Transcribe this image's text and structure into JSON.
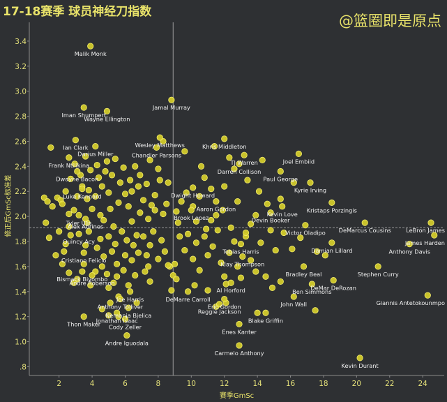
{
  "header": {
    "title": "17-18赛季 球员神经刀指数",
    "watermark": "@篮圈即是原点"
  },
  "colors": {
    "background": "#2e3033",
    "point": "#d7cf2a",
    "point_stroke": "#f2ec6a",
    "text_accent": "#e9e36a",
    "reference_line": "#a9a9a9"
  },
  "chart_data": {
    "type": "scatter",
    "title": "17-18赛季 球员神经刀指数",
    "xlabel": "赛季GmSc",
    "ylabel": "修正后GmSc标准差",
    "xlim": [
      0.2,
      25.3
    ],
    "ylim": [
      0.73,
      3.55
    ],
    "x_ticks": [
      2,
      4,
      6,
      8,
      10,
      12,
      14,
      16,
      18,
      20,
      22,
      24
    ],
    "y_ticks": [
      0.8,
      1.0,
      1.2,
      1.4,
      1.6,
      1.8,
      2.0,
      2.2,
      2.4,
      2.6,
      2.8,
      3.0,
      3.2,
      3.4
    ],
    "y_tick_labels": [
      ".8",
      "1.0",
      "1.2",
      "1.4",
      "1.6",
      "1.8",
      "2.0",
      "2.2",
      "2.4",
      "2.6",
      "2.8",
      "3.0",
      "3.2",
      "3.4"
    ],
    "reference_lines": {
      "x": 8.9,
      "y": 1.91
    },
    "grid": false,
    "labeled_points": [
      {
        "name": "Malik Monk",
        "x": 3.9,
        "y": 3.36
      },
      {
        "name": "Jamal Murray",
        "x": 8.8,
        "y": 2.93
      },
      {
        "name": "Iman Shumpert",
        "x": 3.5,
        "y": 2.87
      },
      {
        "name": "Wayne Ellington",
        "x": 4.9,
        "y": 2.84
      },
      {
        "name": "Wesley Matthews",
        "x": 8.1,
        "y": 2.63
      },
      {
        "name": "Darius Miller",
        "x": 4.2,
        "y": 2.56
      },
      {
        "name": "Ian Clark",
        "x": 3.0,
        "y": 2.61
      },
      {
        "name": "Chandler Parsons",
        "x": 7.9,
        "y": 2.55
      },
      {
        "name": "Khris Middleton",
        "x": 12.0,
        "y": 2.62
      },
      {
        "name": "TJ Warren",
        "x": 13.2,
        "y": 2.49
      },
      {
        "name": "Joel Embiid",
        "x": 16.5,
        "y": 2.5
      },
      {
        "name": "Frank Ntilikina",
        "x": 2.6,
        "y": 2.47
      },
      {
        "name": "Dwayne Bacon",
        "x": 3.1,
        "y": 2.36
      },
      {
        "name": "Darren Collison",
        "x": 12.9,
        "y": 2.42
      },
      {
        "name": "Paul George",
        "x": 15.4,
        "y": 2.36
      },
      {
        "name": "Luke Kennard",
        "x": 3.4,
        "y": 2.22
      },
      {
        "name": "Dwight Howard",
        "x": 10.1,
        "y": 2.23
      },
      {
        "name": "Kyrie Irving",
        "x": 17.2,
        "y": 2.27
      },
      {
        "name": "Aaron Gordon",
        "x": 11.5,
        "y": 2.12
      },
      {
        "name": "Kristaps Porzingis",
        "x": 18.5,
        "y": 2.11
      },
      {
        "name": "Tyler Ulis",
        "x": 3.2,
        "y": 2.01
      },
      {
        "name": "Alex Abrines",
        "x": 3.6,
        "y": 1.98
      },
      {
        "name": "Brook Lopez",
        "x": 10.0,
        "y": 2.05
      },
      {
        "name": "Devin Booker",
        "x": 14.8,
        "y": 2.03
      },
      {
        "name": "Kevin Love",
        "x": 15.5,
        "y": 2.08
      },
      {
        "name": "LeBron James",
        "x": 24.5,
        "y": 1.95
      },
      {
        "name": "DeMarcus Cousins",
        "x": 20.5,
        "y": 1.95
      },
      {
        "name": "Victor Oladipo",
        "x": 16.9,
        "y": 1.93
      },
      {
        "name": "Quincy Acy",
        "x": 3.2,
        "y": 1.86
      },
      {
        "name": "James Harden",
        "x": 24.7,
        "y": 1.85
      },
      {
        "name": "Damian Lillard",
        "x": 18.5,
        "y": 1.79
      },
      {
        "name": "Anthony Davis",
        "x": 23.2,
        "y": 1.78
      },
      {
        "name": "Tobias Harris",
        "x": 13.0,
        "y": 1.78
      },
      {
        "name": "Cristiano Felicio",
        "x": 3.5,
        "y": 1.71
      },
      {
        "name": "Klay Thompson",
        "x": 13.1,
        "y": 1.68
      },
      {
        "name": "Bismack Biyombo",
        "x": 3.4,
        "y": 1.56
      },
      {
        "name": "Stephen Curry",
        "x": 21.3,
        "y": 1.6
      },
      {
        "name": "Bradley Beal",
        "x": 16.8,
        "y": 1.6
      },
      {
        "name": "Andre Roberson",
        "x": 4.0,
        "y": 1.53
      },
      {
        "name": "DeMar DeRozan",
        "x": 18.6,
        "y": 1.49
      },
      {
        "name": "Al Horford",
        "x": 12.4,
        "y": 1.47
      },
      {
        "name": "Ben Simmons",
        "x": 17.3,
        "y": 1.46
      },
      {
        "name": "DeMarre Carroll",
        "x": 9.8,
        "y": 1.4
      },
      {
        "name": "Joe Harris",
        "x": 6.3,
        "y": 1.4
      },
      {
        "name": "Giannis Antetokounmpo",
        "x": 24.3,
        "y": 1.37
      },
      {
        "name": "Anthony Tolliver",
        "x": 5.7,
        "y": 1.34
      },
      {
        "name": "Eric Gordon",
        "x": 12.0,
        "y": 1.34
      },
      {
        "name": "John Wall",
        "x": 16.2,
        "y": 1.36
      },
      {
        "name": "Nemanja Bjelica",
        "x": 6.2,
        "y": 1.27
      },
      {
        "name": "Jonathan Isaac",
        "x": 5.5,
        "y": 1.23
      },
      {
        "name": "Reggie Jackson",
        "x": 11.7,
        "y": 1.3
      },
      {
        "name": "Blake Griffin",
        "x": 14.5,
        "y": 1.23
      },
      {
        "name": "Thon Maker",
        "x": 3.5,
        "y": 1.2
      },
      {
        "name": "Cody Zeller",
        "x": 6.0,
        "y": 1.18
      },
      {
        "name": "Enes Kanter",
        "x": 12.9,
        "y": 1.14
      },
      {
        "name": "Andre Iguodala",
        "x": 6.1,
        "y": 1.05
      },
      {
        "name": "Carmelo Anthony",
        "x": 12.9,
        "y": 0.97
      },
      {
        "name": "Kevin Durant",
        "x": 20.2,
        "y": 0.87
      }
    ],
    "other_points": [
      [
        1.5,
        2.55
      ],
      [
        1.1,
        2.15
      ],
      [
        1.3,
        2.12
      ],
      [
        1.6,
        2.08
      ],
      [
        1.9,
        2.15
      ],
      [
        2.1,
        2.13
      ],
      [
        2.4,
        2.2
      ],
      [
        2.2,
        2.1
      ],
      [
        2.6,
        2.02
      ],
      [
        2.9,
        2.05
      ],
      [
        2.7,
        2.3
      ],
      [
        2.95,
        2.42
      ],
      [
        3.3,
        2.33
      ],
      [
        3.6,
        2.48
      ],
      [
        3.1,
        2.16
      ],
      [
        3.4,
        2.24
      ],
      [
        3.8,
        2.21
      ],
      [
        3.9,
        2.37
      ],
      [
        3.7,
        2.14
      ],
      [
        4.4,
        2.31
      ],
      [
        4.0,
        2.06
      ],
      [
        4.2,
        2.16
      ],
      [
        4.5,
        2.01
      ],
      [
        4.6,
        2.24
      ],
      [
        4.8,
        2.36
      ],
      [
        4.9,
        2.44
      ],
      [
        5.0,
        2.19
      ],
      [
        5.2,
        2.33
      ],
      [
        5.4,
        2.46
      ],
      [
        5.1,
        2.06
      ],
      [
        5.6,
        2.11
      ],
      [
        5.7,
        2.27
      ],
      [
        5.9,
        2.39
      ],
      [
        6.0,
        2.18
      ],
      [
        6.2,
        2.08
      ],
      [
        6.3,
        2.29
      ],
      [
        6.4,
        2.2
      ],
      [
        6.6,
        2.4
      ],
      [
        6.9,
        2.33
      ],
      [
        7.1,
        2.13
      ],
      [
        7.3,
        2.26
      ],
      [
        7.5,
        2.45
      ],
      [
        7.6,
        2.09
      ],
      [
        7.8,
        2.17
      ],
      [
        8.0,
        2.38
      ],
      [
        8.1,
        2.29
      ],
      [
        8.3,
        2.02
      ],
      [
        8.5,
        2.1
      ],
      [
        8.6,
        2.27
      ],
      [
        9.1,
        2.04
      ],
      [
        9.4,
        2.12
      ],
      [
        9.7,
        2.19
      ],
      [
        10.1,
        2.08
      ],
      [
        10.5,
        2.16
      ],
      [
        10.8,
        2.31
      ],
      [
        11.2,
        2.22
      ],
      [
        11.5,
        2.01
      ],
      [
        11.9,
        2.05
      ],
      [
        12.3,
        2.47
      ],
      [
        12.6,
        2.38
      ],
      [
        13.4,
        2.29
      ],
      [
        14.1,
        2.2
      ],
      [
        15.4,
        2.14
      ],
      [
        16.2,
        2.27
      ],
      [
        14.6,
        2.1
      ],
      [
        12.8,
        2.12
      ],
      [
        13.9,
        2.01
      ],
      [
        10.6,
        2.4
      ],
      [
        11.4,
        2.56
      ],
      [
        8.3,
        2.6
      ],
      [
        4.7,
        1.97
      ],
      [
        5.3,
        1.92
      ],
      [
        6.4,
        1.96
      ],
      [
        7.4,
        1.98
      ],
      [
        7.8,
        2.05
      ],
      [
        9.2,
        1.95
      ],
      [
        10.3,
        1.96
      ],
      [
        11.2,
        1.97
      ],
      [
        3.7,
        1.95
      ],
      [
        6.9,
        2.03
      ],
      [
        3.8,
        1.88
      ],
      [
        4.3,
        1.75
      ],
      [
        4.5,
        1.82
      ],
      [
        4.7,
        1.68
      ],
      [
        5.0,
        1.84
      ],
      [
        5.2,
        1.72
      ],
      [
        5.4,
        1.78
      ],
      [
        5.5,
        1.62
      ],
      [
        5.8,
        1.88
      ],
      [
        6.0,
        1.69
      ],
      [
        6.1,
        1.81
      ],
      [
        6.4,
        1.65
      ],
      [
        6.5,
        1.77
      ],
      [
        6.7,
        1.85
      ],
      [
        6.8,
        1.71
      ],
      [
        7.1,
        1.84
      ],
      [
        7.3,
        1.69
      ],
      [
        7.4,
        1.6
      ],
      [
        7.5,
        1.77
      ],
      [
        7.7,
        1.88
      ],
      [
        8.0,
        1.66
      ],
      [
        8.2,
        1.81
      ],
      [
        8.4,
        1.72
      ],
      [
        8.7,
        1.6
      ],
      [
        8.9,
        1.53
      ],
      [
        9.0,
        1.62
      ],
      [
        9.3,
        1.84
      ],
      [
        9.6,
        1.73
      ],
      [
        9.8,
        1.86
      ],
      [
        10.1,
        1.66
      ],
      [
        10.3,
        1.79
      ],
      [
        10.5,
        1.57
      ],
      [
        10.8,
        1.84
      ],
      [
        11.0,
        1.69
      ],
      [
        11.3,
        1.76
      ],
      [
        11.6,
        1.89
      ],
      [
        11.8,
        1.63
      ],
      [
        12.0,
        1.52
      ],
      [
        12.3,
        1.71
      ],
      [
        12.6,
        1.8
      ],
      [
        12.8,
        1.6
      ],
      [
        13.3,
        1.84
      ],
      [
        13.6,
        1.65
      ],
      [
        13.9,
        1.56
      ],
      [
        14.2,
        1.79
      ],
      [
        14.5,
        1.52
      ],
      [
        15.1,
        1.73
      ],
      [
        15.6,
        1.87
      ],
      [
        16.1,
        1.74
      ],
      [
        16.6,
        1.83
      ],
      [
        14.9,
        1.43
      ],
      [
        15.4,
        1.48
      ],
      [
        12.1,
        1.46
      ],
      [
        11.0,
        1.41
      ],
      [
        10.2,
        1.45
      ],
      [
        13.0,
        1.51
      ],
      [
        3.1,
        1.5
      ],
      [
        3.9,
        1.45
      ],
      [
        4.2,
        1.56
      ],
      [
        4.6,
        1.6
      ],
      [
        4.9,
        1.54
      ],
      [
        5.0,
        1.43
      ],
      [
        5.3,
        1.47
      ],
      [
        5.5,
        1.52
      ],
      [
        5.9,
        1.57
      ],
      [
        6.2,
        1.45
      ],
      [
        6.6,
        1.53
      ],
      [
        7.2,
        1.56
      ],
      [
        7.5,
        1.48
      ],
      [
        8.6,
        1.61
      ],
      [
        9.1,
        1.5
      ],
      [
        8.8,
        1.41
      ],
      [
        2.2,
        1.62
      ],
      [
        2.6,
        1.55
      ],
      [
        2.9,
        1.47
      ],
      [
        2.3,
        1.72
      ],
      [
        2.4,
        1.78
      ],
      [
        1.4,
        1.83
      ],
      [
        5.1,
        1.31
      ],
      [
        5.6,
        1.36
      ],
      [
        4.6,
        1.26
      ],
      [
        5.0,
        1.21
      ],
      [
        5.6,
        1.2
      ],
      [
        6.7,
        1.31
      ],
      [
        11.5,
        1.28
      ],
      [
        12.1,
        1.31
      ],
      [
        14.0,
        1.23
      ],
      [
        17.5,
        1.25
      ],
      [
        13.3,
        1.87
      ],
      [
        14.8,
        1.89
      ],
      [
        17.6,
        1.72
      ],
      [
        18.1,
        1.69
      ],
      [
        10.9,
        1.9
      ],
      [
        12.4,
        1.91
      ],
      [
        13.6,
        1.94
      ],
      [
        2.0,
        1.88
      ],
      [
        2.7,
        1.85
      ],
      [
        1.8,
        1.69
      ],
      [
        2.6,
        1.92
      ],
      [
        1.2,
        1.95
      ],
      [
        4.3,
        2.41
      ],
      [
        9.6,
        2.52
      ],
      [
        14.3,
        2.45
      ],
      [
        12.0,
        2.24
      ],
      [
        6.8,
        2.24
      ],
      [
        3.5,
        1.62
      ],
      [
        3.6,
        1.77
      ]
    ]
  }
}
